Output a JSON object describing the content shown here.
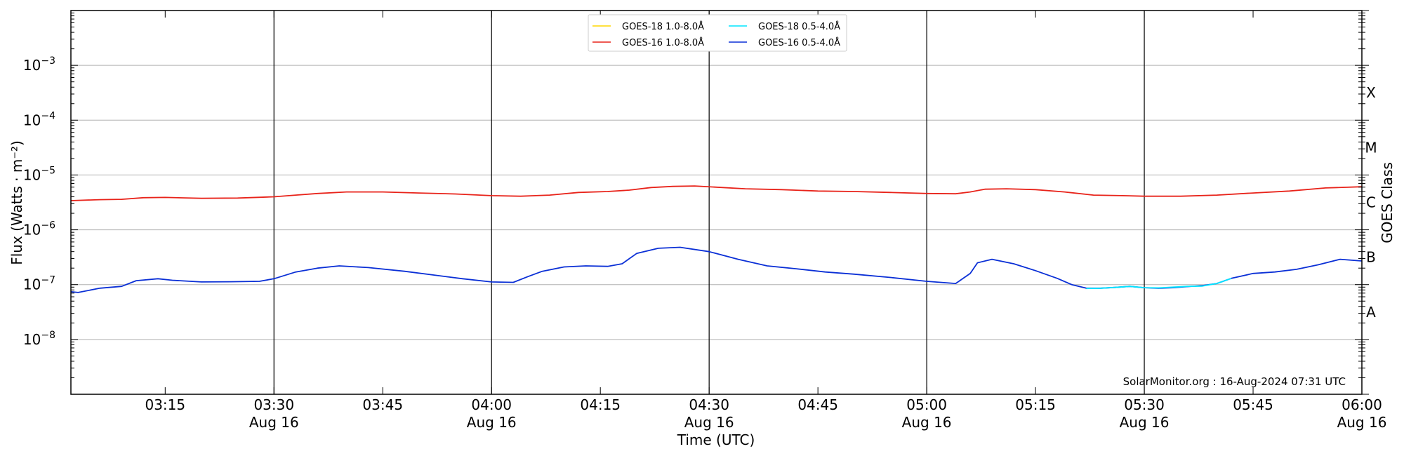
{
  "chart_data": {
    "type": "line",
    "xlabel": "Time (UTC)",
    "ylabel": "Flux (Watts · m⁻²)",
    "ylabel_right": "GOES Class",
    "y_scale": "log",
    "ylim": [
      1e-09,
      0.01
    ],
    "xlim": [
      "2024-08-16 03:02",
      "2024-08-16 06:00"
    ],
    "grid": "horizontal at decades",
    "legend_position": "top-center",
    "y_ticks": [
      {
        "value": 1e-08,
        "base": "10",
        "exp": "−8"
      },
      {
        "value": 1e-07,
        "base": "10",
        "exp": "−7"
      },
      {
        "value": 1e-06,
        "base": "10",
        "exp": "−6"
      },
      {
        "value": 1e-05,
        "base": "10",
        "exp": "−5"
      },
      {
        "value": 0.0001,
        "base": "10",
        "exp": "−4"
      },
      {
        "value": 0.001,
        "base": "10",
        "exp": "−3"
      }
    ],
    "x_ticks": [
      {
        "time": "03:15",
        "label": "03:15",
        "date": ""
      },
      {
        "time": "03:30",
        "label": "03:30",
        "date": "Aug 16"
      },
      {
        "time": "03:45",
        "label": "03:45",
        "date": ""
      },
      {
        "time": "04:00",
        "label": "04:00",
        "date": "Aug 16"
      },
      {
        "time": "04:15",
        "label": "04:15",
        "date": ""
      },
      {
        "time": "04:30",
        "label": "04:30",
        "date": "Aug 16"
      },
      {
        "time": "04:45",
        "label": "04:45",
        "date": ""
      },
      {
        "time": "05:00",
        "label": "05:00",
        "date": "Aug 16"
      },
      {
        "time": "05:15",
        "label": "05:15",
        "date": ""
      },
      {
        "time": "05:30",
        "label": "05:30",
        "date": "Aug 16"
      },
      {
        "time": "05:45",
        "label": "05:45",
        "date": ""
      },
      {
        "time": "06:00",
        "label": "06:00",
        "date": "Aug 16"
      }
    ],
    "vertical_lines": [
      "03:30",
      "04:00",
      "04:30",
      "05:00",
      "05:30"
    ],
    "class_labels": [
      {
        "label": "X",
        "value": 0.000316
      },
      {
        "label": "M",
        "value": 3.16e-05
      },
      {
        "label": "C",
        "value": 3.16e-06
      },
      {
        "label": "B",
        "value": 3.16e-07
      },
      {
        "label": "A",
        "value": 3.16e-08
      }
    ],
    "series": [
      {
        "name": "GOES-18 1.0-8.0Å",
        "color": "#ffd700",
        "points": []
      },
      {
        "name": "GOES-18 0.5-4.0Å",
        "color": "#00e5ff",
        "points": [
          [
            "05:22",
            8.5e-08
          ],
          [
            "05:24",
            8.6e-08
          ],
          [
            "05:26",
            8.9e-08
          ],
          [
            "05:28",
            9.3e-08
          ],
          [
            "05:30",
            8.8e-08
          ],
          [
            "05:32",
            8.7e-08
          ],
          [
            "05:34",
            9e-08
          ],
          [
            "05:36",
            9.3e-08
          ],
          [
            "05:38",
            9.4e-08
          ],
          [
            "05:40",
            1.05e-07
          ],
          [
            "05:42",
            1.3e-07
          ]
        ]
      },
      {
        "name": "GOES-16 1.0-8.0Å",
        "color": "#e8231a",
        "points": [
          [
            "03:02",
            3.4e-06
          ],
          [
            "03:06",
            3.55e-06
          ],
          [
            "03:09",
            3.6e-06
          ],
          [
            "03:12",
            3.85e-06
          ],
          [
            "03:15",
            3.9e-06
          ],
          [
            "03:20",
            3.75e-06
          ],
          [
            "03:25",
            3.8e-06
          ],
          [
            "03:30",
            4e-06
          ],
          [
            "03:33",
            4.3e-06
          ],
          [
            "03:36",
            4.6e-06
          ],
          [
            "03:40",
            4.9e-06
          ],
          [
            "03:45",
            4.9e-06
          ],
          [
            "03:50",
            4.7e-06
          ],
          [
            "03:55",
            4.5e-06
          ],
          [
            "04:00",
            4.2e-06
          ],
          [
            "04:04",
            4.1e-06
          ],
          [
            "04:08",
            4.3e-06
          ],
          [
            "04:12",
            4.8e-06
          ],
          [
            "04:16",
            5e-06
          ],
          [
            "04:19",
            5.3e-06
          ],
          [
            "04:22",
            5.9e-06
          ],
          [
            "04:25",
            6.2e-06
          ],
          [
            "04:28",
            6.3e-06
          ],
          [
            "04:31",
            6e-06
          ],
          [
            "04:35",
            5.6e-06
          ],
          [
            "04:40",
            5.4e-06
          ],
          [
            "04:45",
            5.1e-06
          ],
          [
            "04:50",
            5e-06
          ],
          [
            "04:55",
            4.8e-06
          ],
          [
            "05:00",
            4.6e-06
          ],
          [
            "05:04",
            4.55e-06
          ],
          [
            "05:06",
            4.9e-06
          ],
          [
            "05:08",
            5.5e-06
          ],
          [
            "05:11",
            5.6e-06
          ],
          [
            "05:15",
            5.4e-06
          ],
          [
            "05:19",
            4.9e-06
          ],
          [
            "05:23",
            4.3e-06
          ],
          [
            "05:27",
            4.2e-06
          ],
          [
            "05:30",
            4.1e-06
          ],
          [
            "05:35",
            4.1e-06
          ],
          [
            "05:40",
            4.3e-06
          ],
          [
            "05:45",
            4.7e-06
          ],
          [
            "05:50",
            5.1e-06
          ],
          [
            "05:55",
            5.8e-06
          ],
          [
            "06:00",
            6.1e-06
          ]
        ]
      },
      {
        "name": "GOES-16 0.5-4.0Å",
        "color": "#0a2fd6",
        "points": [
          [
            "03:02",
            7.4e-08
          ],
          [
            "03:03",
            7.2e-08
          ],
          [
            "03:06",
            8.6e-08
          ],
          [
            "03:09",
            9.3e-08
          ],
          [
            "03:11",
            1.18e-07
          ],
          [
            "03:14",
            1.28e-07
          ],
          [
            "03:16",
            1.2e-07
          ],
          [
            "03:20",
            1.12e-07
          ],
          [
            "03:24",
            1.13e-07
          ],
          [
            "03:28",
            1.15e-07
          ],
          [
            "03:30",
            1.28e-07
          ],
          [
            "03:33",
            1.7e-07
          ],
          [
            "03:36",
            2e-07
          ],
          [
            "03:39",
            2.2e-07
          ],
          [
            "03:43",
            2.05e-07
          ],
          [
            "03:48",
            1.75e-07
          ],
          [
            "03:52",
            1.5e-07
          ],
          [
            "03:56",
            1.28e-07
          ],
          [
            "04:00",
            1.12e-07
          ],
          [
            "04:03",
            1.1e-07
          ],
          [
            "04:05",
            1.4e-07
          ],
          [
            "04:07",
            1.75e-07
          ],
          [
            "04:10",
            2.1e-07
          ],
          [
            "04:13",
            2.2e-07
          ],
          [
            "04:16",
            2.15e-07
          ],
          [
            "04:18",
            2.4e-07
          ],
          [
            "04:20",
            3.7e-07
          ],
          [
            "04:23",
            4.6e-07
          ],
          [
            "04:26",
            4.8e-07
          ],
          [
            "04:30",
            4e-07
          ],
          [
            "04:34",
            2.9e-07
          ],
          [
            "04:38",
            2.2e-07
          ],
          [
            "04:42",
            1.95e-07
          ],
          [
            "04:46",
            1.7e-07
          ],
          [
            "04:50",
            1.55e-07
          ],
          [
            "04:55",
            1.35e-07
          ],
          [
            "05:00",
            1.15e-07
          ],
          [
            "05:04",
            1.05e-07
          ],
          [
            "05:06",
            1.6e-07
          ],
          [
            "05:07",
            2.5e-07
          ],
          [
            "05:09",
            2.9e-07
          ],
          [
            "05:12",
            2.4e-07
          ],
          [
            "05:15",
            1.8e-07
          ],
          [
            "05:18",
            1.3e-07
          ],
          [
            "05:20",
            1e-07
          ],
          [
            "05:22",
            8.6e-08
          ],
          [
            "05:24",
            8.6e-08
          ],
          [
            "05:26",
            8.9e-08
          ],
          [
            "05:28",
            9.3e-08
          ],
          [
            "05:30",
            8.8e-08
          ],
          [
            "05:32",
            8.6e-08
          ],
          [
            "05:34",
            8.8e-08
          ],
          [
            "05:36",
            9.2e-08
          ],
          [
            "05:38",
            9.6e-08
          ],
          [
            "05:40",
            1.05e-07
          ],
          [
            "05:42",
            1.3e-07
          ],
          [
            "05:45",
            1.6e-07
          ],
          [
            "05:48",
            1.7e-07
          ],
          [
            "05:51",
            1.9e-07
          ],
          [
            "05:54",
            2.3e-07
          ],
          [
            "05:57",
            2.9e-07
          ],
          [
            "06:00",
            2.7e-07
          ]
        ]
      }
    ],
    "credit": "SolarMonitor.org : 16-Aug-2024 07:31 UTC"
  }
}
